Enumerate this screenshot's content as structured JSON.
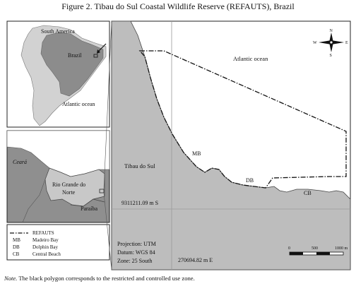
{
  "title": "Figure 2. Tibau do Sul Coastal Wildlife Reserve (REFAUTS), Brazil",
  "note_label": "Note.",
  "note_text": " The black polygon corresponds to the restricted and controlled use zone.",
  "inset_continent": {
    "continent_label": "South America",
    "country_label": "Brazil",
    "ocean_label": "Atlantic ocean"
  },
  "inset_state": {
    "ceara_label": "Ceará",
    "rn_label": "Rio Grande do Norte",
    "paraiba_label": "Paraíba"
  },
  "legend": {
    "items": [
      {
        "abbr": "",
        "label": "REFAUTS"
      },
      {
        "abbr": "MB",
        "label": "Madeiro Bay"
      },
      {
        "abbr": "DB",
        "label": "Dolphin Bay"
      },
      {
        "abbr": "CB",
        "label": "Central Beach"
      }
    ]
  },
  "main_map": {
    "ocean_label": "Atlantic ocean",
    "town_label": "Tibau do Sul",
    "mb_label": "MB",
    "db_label": "DB",
    "cb_label": "CB",
    "northing_label": "9311211.09 m S",
    "easting_label": "270694.82 m E",
    "projection": "Projection: UTM",
    "datum": "Datum: WGS 84",
    "zone": "Zone: 25 South",
    "compass": {
      "n": "N",
      "s": "S",
      "e": "E",
      "w": "W"
    },
    "scale": {
      "ticks": [
        "0",
        "500",
        "1000 m"
      ]
    }
  },
  "colors": {
    "land_main": "#bdbdbd",
    "sea": "#ffffff",
    "brazil": "#8c8c8c",
    "south_america": "#d2d2d2",
    "rn_state": "#c8c8c8",
    "neighbor_states": "#8f8f8f"
  }
}
